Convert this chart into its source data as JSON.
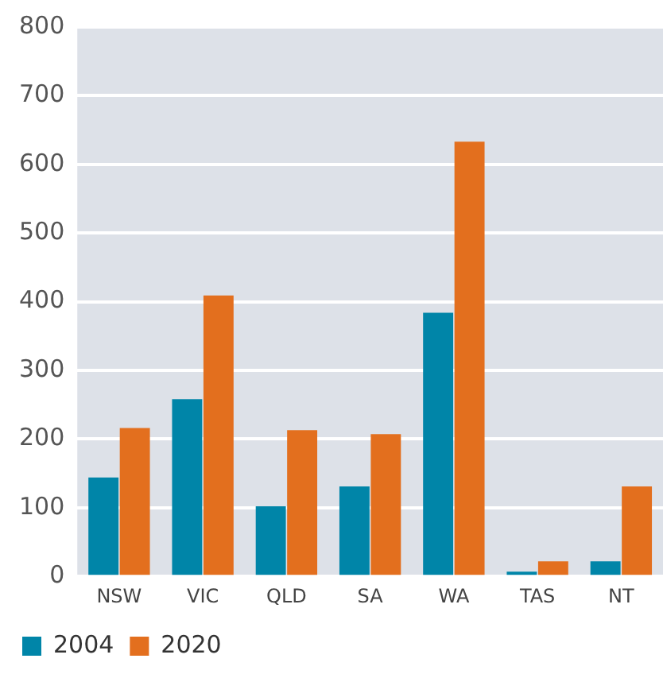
{
  "chart_data": {
    "type": "bar",
    "categories": [
      "NSW",
      "VIC",
      "QLD",
      "SA",
      "WA",
      "TAS",
      "NT"
    ],
    "series": [
      {
        "name": "2004",
        "color": "#0085a8",
        "values": [
          144,
          258,
          102,
          131,
          384,
          7,
          22
        ]
      },
      {
        "name": "2020",
        "color": "#e36f1e",
        "values": [
          216,
          409,
          213,
          207,
          633,
          22,
          131
        ]
      }
    ],
    "ylim": [
      0,
      800
    ],
    "yticks": [
      0,
      100,
      200,
      300,
      400,
      500,
      600,
      700,
      800
    ],
    "grid": "y",
    "legend": "bottom left"
  }
}
